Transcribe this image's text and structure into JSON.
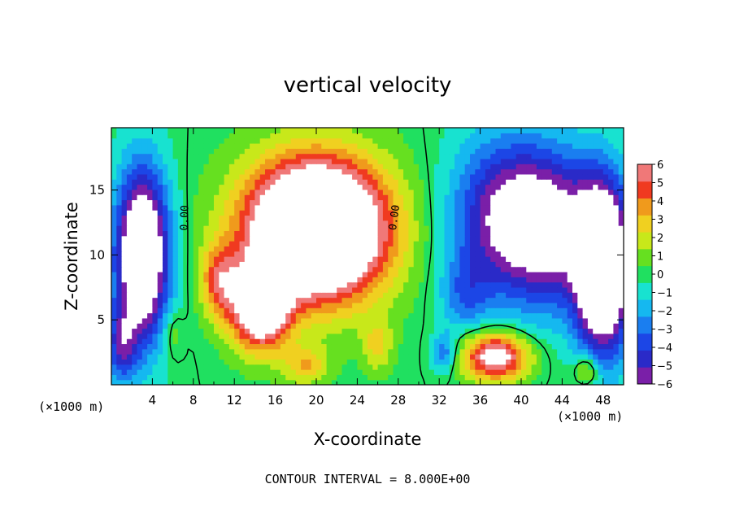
{
  "chart_data": {
    "type": "heatmap",
    "title": "vertical velocity",
    "xlabel": "X-coordinate",
    "ylabel": "Z-coordinate",
    "x_unit_left": "(×1000 m)",
    "x_unit_right": "(×1000 m)",
    "footer": "CONTOUR INTERVAL = 8.000E+00",
    "xlim": [
      0,
      50
    ],
    "ylim": [
      0,
      19.8
    ],
    "x_ticks": [
      "4",
      "8",
      "12",
      "16",
      "20",
      "24",
      "28",
      "32",
      "36",
      "40",
      "44",
      "48"
    ],
    "y_ticks": [
      "5",
      "10",
      "15"
    ],
    "colorbar": {
      "range": [
        -6,
        6
      ],
      "ticks": [
        "6",
        "5",
        "4",
        "3",
        "2",
        "1",
        "0",
        "−1",
        "−2",
        "−3",
        "−4",
        "−5",
        "−6"
      ],
      "colors": [
        "#7a1fa8",
        "#2a2ac8",
        "#1c46e6",
        "#1a7ef0",
        "#15b8f0",
        "#18e2d0",
        "#20e060",
        "#66e020",
        "#c8e81a",
        "#f0d020",
        "#f09a1c",
        "#f03a20",
        "#f07878"
      ],
      "out_of_range_color": "#ffffff"
    },
    "contour_labels": [
      "0.00",
      "0.00"
    ],
    "fields": {
      "blobs": [
        {
          "x": 20.0,
          "z": 12.0,
          "amp": 14.0,
          "sx": 6.8,
          "sz": 5.3
        },
        {
          "x": 14.5,
          "z": 6.0,
          "amp": 9.0,
          "sx": 2.8,
          "sz": 3.2
        },
        {
          "x": 10.5,
          "z": 8.0,
          "amp": 4.0,
          "sx": 1.8,
          "sz": 2.8
        },
        {
          "x": 19.0,
          "z": 1.5,
          "amp": 3.0,
          "sx": 2.2,
          "sz": 1.5
        },
        {
          "x": 26.0,
          "z": 3.0,
          "amp": 2.5,
          "sx": 1.5,
          "sz": 2.0
        },
        {
          "x": 37.5,
          "z": 2.2,
          "amp": 7.5,
          "sx": 3.2,
          "sz": 1.8
        },
        {
          "x": 46.5,
          "z": 1.2,
          "amp": 3.0,
          "sx": 1.2,
          "sz": 1.2
        },
        {
          "x": 3.0,
          "z": 10.0,
          "amp": -10.0,
          "sx": 2.6,
          "sz": 6.5
        },
        {
          "x": 1.0,
          "z": 3.0,
          "amp": -4.0,
          "sx": 1.5,
          "sz": 3.0
        },
        {
          "x": 43.0,
          "z": 12.0,
          "amp": -6.0,
          "sx": 4.5,
          "sz": 6.0
        },
        {
          "x": 38.0,
          "z": 13.0,
          "amp": -5.5,
          "sx": 5.0,
          "sz": 6.0
        },
        {
          "x": 48.0,
          "z": 9.0,
          "amp": -11.0,
          "sx": 2.6,
          "sz": 6.5
        },
        {
          "x": 34.5,
          "z": 7.0,
          "amp": -2.5,
          "sx": 2.5,
          "sz": 3.0
        },
        {
          "x": 32.5,
          "z": 2.5,
          "amp": -3.0,
          "sx": 1.2,
          "sz": 1.5
        },
        {
          "x": 6.0,
          "z": 4.0,
          "amp": 1.5,
          "sx": 1.0,
          "sz": 2.0
        }
      ]
    }
  }
}
